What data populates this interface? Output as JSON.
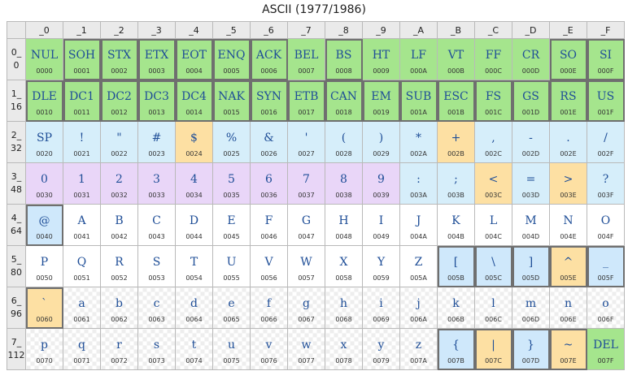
{
  "title": "ASCII (1977/1986)",
  "columns": [
    "_0",
    "_1",
    "_2",
    "_3",
    "_4",
    "_5",
    "_6",
    "_7",
    "_8",
    "_9",
    "_A",
    "_B",
    "_C",
    "_D",
    "_E",
    "_F"
  ],
  "rows": [
    {
      "label": [
        "0_",
        "0"
      ],
      "cells": [
        {
          "ch": "NUL",
          "code": "0000",
          "cat": "control"
        },
        {
          "ch": "SOH",
          "code": "0001",
          "cat": "control",
          "boxed": true
        },
        {
          "ch": "STX",
          "code": "0002",
          "cat": "control",
          "boxed": true
        },
        {
          "ch": "ETX",
          "code": "0003",
          "cat": "control",
          "boxed": true
        },
        {
          "ch": "EOT",
          "code": "0004",
          "cat": "control",
          "boxed": true
        },
        {
          "ch": "ENQ",
          "code": "0005",
          "cat": "control",
          "boxed": true
        },
        {
          "ch": "ACK",
          "code": "0006",
          "cat": "control",
          "boxed": true
        },
        {
          "ch": "BEL",
          "code": "0007",
          "cat": "control"
        },
        {
          "ch": "BS",
          "code": "0008",
          "cat": "control",
          "boxed": true
        },
        {
          "ch": "HT",
          "code": "0009",
          "cat": "control"
        },
        {
          "ch": "LF",
          "code": "000A",
          "cat": "control"
        },
        {
          "ch": "VT",
          "code": "000B",
          "cat": "control"
        },
        {
          "ch": "FF",
          "code": "000C",
          "cat": "control"
        },
        {
          "ch": "CR",
          "code": "000D",
          "cat": "control"
        },
        {
          "ch": "SO",
          "code": "000E",
          "cat": "control",
          "boxed": true
        },
        {
          "ch": "SI",
          "code": "000F",
          "cat": "control",
          "boxed": true
        }
      ]
    },
    {
      "label": [
        "1_",
        "16"
      ],
      "cells": [
        {
          "ch": "DLE",
          "code": "0010",
          "cat": "control",
          "boxed": true
        },
        {
          "ch": "DC1",
          "code": "0011",
          "cat": "control",
          "boxed": true
        },
        {
          "ch": "DC2",
          "code": "0012",
          "cat": "control",
          "boxed": true
        },
        {
          "ch": "DC3",
          "code": "0013",
          "cat": "control",
          "boxed": true
        },
        {
          "ch": "DC4",
          "code": "0014",
          "cat": "control",
          "boxed": true
        },
        {
          "ch": "NAK",
          "code": "0015",
          "cat": "control",
          "boxed": true
        },
        {
          "ch": "SYN",
          "code": "0016",
          "cat": "control",
          "boxed": true
        },
        {
          "ch": "ETB",
          "code": "0017",
          "cat": "control",
          "boxed": true
        },
        {
          "ch": "CAN",
          "code": "0018",
          "cat": "control",
          "boxed": true
        },
        {
          "ch": "EM",
          "code": "0019",
          "cat": "control",
          "boxed": true
        },
        {
          "ch": "SUB",
          "code": "001A",
          "cat": "control",
          "boxed": true
        },
        {
          "ch": "ESC",
          "code": "001B",
          "cat": "control",
          "boxed": true
        },
        {
          "ch": "FS",
          "code": "001C",
          "cat": "control",
          "boxed": true
        },
        {
          "ch": "GS",
          "code": "001D",
          "cat": "control",
          "boxed": true
        },
        {
          "ch": "RS",
          "code": "001E",
          "cat": "control",
          "boxed": true
        },
        {
          "ch": "US",
          "code": "001F",
          "cat": "control",
          "boxed": true
        }
      ]
    },
    {
      "label": [
        "2_",
        "32"
      ],
      "cells": [
        {
          "ch": "SP",
          "code": "0020",
          "cat": "punct"
        },
        {
          "ch": "!",
          "code": "0021",
          "cat": "punct"
        },
        {
          "ch": "\"",
          "code": "0022",
          "cat": "punct"
        },
        {
          "ch": "#",
          "code": "0023",
          "cat": "punct"
        },
        {
          "ch": "$",
          "code": "0024",
          "cat": "amber"
        },
        {
          "ch": "%",
          "code": "0025",
          "cat": "punct"
        },
        {
          "ch": "&",
          "code": "0026",
          "cat": "punct"
        },
        {
          "ch": "'",
          "code": "0027",
          "cat": "punct"
        },
        {
          "ch": "(",
          "code": "0028",
          "cat": "punct"
        },
        {
          "ch": ")",
          "code": "0029",
          "cat": "punct"
        },
        {
          "ch": "*",
          "code": "002A",
          "cat": "punct"
        },
        {
          "ch": "+",
          "code": "002B",
          "cat": "amber"
        },
        {
          "ch": ",",
          "code": "002C",
          "cat": "punct"
        },
        {
          "ch": "-",
          "code": "002D",
          "cat": "punct"
        },
        {
          "ch": ".",
          "code": "002E",
          "cat": "punct"
        },
        {
          "ch": "/",
          "code": "002F",
          "cat": "punct"
        }
      ]
    },
    {
      "label": [
        "3_",
        "48"
      ],
      "cells": [
        {
          "ch": "0",
          "code": "0030",
          "cat": "digit"
        },
        {
          "ch": "1",
          "code": "0031",
          "cat": "digit"
        },
        {
          "ch": "2",
          "code": "0032",
          "cat": "digit"
        },
        {
          "ch": "3",
          "code": "0033",
          "cat": "digit"
        },
        {
          "ch": "4",
          "code": "0034",
          "cat": "digit"
        },
        {
          "ch": "5",
          "code": "0035",
          "cat": "digit"
        },
        {
          "ch": "6",
          "code": "0036",
          "cat": "digit"
        },
        {
          "ch": "7",
          "code": "0037",
          "cat": "digit"
        },
        {
          "ch": "8",
          "code": "0038",
          "cat": "digit"
        },
        {
          "ch": "9",
          "code": "0039",
          "cat": "digit"
        },
        {
          "ch": ":",
          "code": "003A",
          "cat": "punct"
        },
        {
          "ch": ";",
          "code": "003B",
          "cat": "punct"
        },
        {
          "ch": "<",
          "code": "003C",
          "cat": "amber"
        },
        {
          "ch": "=",
          "code": "003D",
          "cat": "punct"
        },
        {
          "ch": ">",
          "code": "003E",
          "cat": "amber"
        },
        {
          "ch": "?",
          "code": "003F",
          "cat": "punct"
        }
      ]
    },
    {
      "label": [
        "4_",
        "64"
      ],
      "cells": [
        {
          "ch": "@",
          "code": "0040",
          "cat": "blue",
          "boxed": true
        },
        {
          "ch": "A",
          "code": "0041",
          "cat": "upper"
        },
        {
          "ch": "B",
          "code": "0042",
          "cat": "upper"
        },
        {
          "ch": "C",
          "code": "0043",
          "cat": "upper"
        },
        {
          "ch": "D",
          "code": "0044",
          "cat": "upper"
        },
        {
          "ch": "E",
          "code": "0045",
          "cat": "upper"
        },
        {
          "ch": "F",
          "code": "0046",
          "cat": "upper"
        },
        {
          "ch": "G",
          "code": "0047",
          "cat": "upper"
        },
        {
          "ch": "H",
          "code": "0048",
          "cat": "upper"
        },
        {
          "ch": "I",
          "code": "0049",
          "cat": "upper"
        },
        {
          "ch": "J",
          "code": "004A",
          "cat": "upper"
        },
        {
          "ch": "K",
          "code": "004B",
          "cat": "upper"
        },
        {
          "ch": "L",
          "code": "004C",
          "cat": "upper"
        },
        {
          "ch": "M",
          "code": "004D",
          "cat": "upper"
        },
        {
          "ch": "N",
          "code": "004E",
          "cat": "upper"
        },
        {
          "ch": "O",
          "code": "004F",
          "cat": "upper"
        }
      ]
    },
    {
      "label": [
        "5_",
        "80"
      ],
      "cells": [
        {
          "ch": "P",
          "code": "0050",
          "cat": "upper"
        },
        {
          "ch": "Q",
          "code": "0051",
          "cat": "upper"
        },
        {
          "ch": "R",
          "code": "0052",
          "cat": "upper"
        },
        {
          "ch": "S",
          "code": "0053",
          "cat": "upper"
        },
        {
          "ch": "T",
          "code": "0054",
          "cat": "upper"
        },
        {
          "ch": "U",
          "code": "0055",
          "cat": "upper"
        },
        {
          "ch": "V",
          "code": "0056",
          "cat": "upper"
        },
        {
          "ch": "W",
          "code": "0057",
          "cat": "upper"
        },
        {
          "ch": "X",
          "code": "0058",
          "cat": "upper"
        },
        {
          "ch": "Y",
          "code": "0059",
          "cat": "upper"
        },
        {
          "ch": "Z",
          "code": "005A",
          "cat": "upper"
        },
        {
          "ch": "[",
          "code": "005B",
          "cat": "blue",
          "boxed": true
        },
        {
          "ch": "\\",
          "code": "005C",
          "cat": "blue",
          "boxed": true
        },
        {
          "ch": "]",
          "code": "005D",
          "cat": "blue",
          "boxed": true
        },
        {
          "ch": "^",
          "code": "005E",
          "cat": "amber",
          "boxed": true
        },
        {
          "ch": "_",
          "code": "005F",
          "cat": "blue",
          "boxed": true
        }
      ]
    },
    {
      "label": [
        "6_",
        "96"
      ],
      "cells": [
        {
          "ch": "`",
          "code": "0060",
          "cat": "amber",
          "boxed": true
        },
        {
          "ch": "a",
          "code": "0061",
          "cat": "lower"
        },
        {
          "ch": "b",
          "code": "0062",
          "cat": "lower"
        },
        {
          "ch": "c",
          "code": "0063",
          "cat": "lower"
        },
        {
          "ch": "d",
          "code": "0064",
          "cat": "lower"
        },
        {
          "ch": "e",
          "code": "0065",
          "cat": "lower"
        },
        {
          "ch": "f",
          "code": "0066",
          "cat": "lower"
        },
        {
          "ch": "g",
          "code": "0067",
          "cat": "lower"
        },
        {
          "ch": "h",
          "code": "0068",
          "cat": "lower"
        },
        {
          "ch": "i",
          "code": "0069",
          "cat": "lower"
        },
        {
          "ch": "j",
          "code": "006A",
          "cat": "lower"
        },
        {
          "ch": "k",
          "code": "006B",
          "cat": "lower"
        },
        {
          "ch": "l",
          "code": "006C",
          "cat": "lower"
        },
        {
          "ch": "m",
          "code": "006D",
          "cat": "lower"
        },
        {
          "ch": "n",
          "code": "006E",
          "cat": "lower"
        },
        {
          "ch": "o",
          "code": "006F",
          "cat": "lower"
        }
      ]
    },
    {
      "label": [
        "7_",
        "112"
      ],
      "cells": [
        {
          "ch": "p",
          "code": "0070",
          "cat": "lower"
        },
        {
          "ch": "q",
          "code": "0071",
          "cat": "lower"
        },
        {
          "ch": "r",
          "code": "0072",
          "cat": "lower"
        },
        {
          "ch": "s",
          "code": "0073",
          "cat": "lower"
        },
        {
          "ch": "t",
          "code": "0074",
          "cat": "lower"
        },
        {
          "ch": "u",
          "code": "0075",
          "cat": "lower"
        },
        {
          "ch": "v",
          "code": "0076",
          "cat": "lower"
        },
        {
          "ch": "w",
          "code": "0077",
          "cat": "lower"
        },
        {
          "ch": "x",
          "code": "0078",
          "cat": "lower"
        },
        {
          "ch": "y",
          "code": "0079",
          "cat": "lower"
        },
        {
          "ch": "z",
          "code": "007A",
          "cat": "lower"
        },
        {
          "ch": "{",
          "code": "007B",
          "cat": "blue",
          "boxed": true
        },
        {
          "ch": "|",
          "code": "007C",
          "cat": "amber",
          "boxed": true
        },
        {
          "ch": "}",
          "code": "007D",
          "cat": "blue",
          "boxed": true
        },
        {
          "ch": "~",
          "code": "007E",
          "cat": "amber",
          "boxed": true
        },
        {
          "ch": "DEL",
          "code": "007F",
          "cat": "control"
        }
      ]
    }
  ],
  "colors": {
    "control": "#a5e58d",
    "punct": "#d6eefa",
    "digit": "#e9d6f8",
    "upper": "#ffffff",
    "lower": "#ffffff",
    "amber": "#fde0a3",
    "blue": "#cfe8fb",
    "glyph_text": "#1f4e97"
  }
}
